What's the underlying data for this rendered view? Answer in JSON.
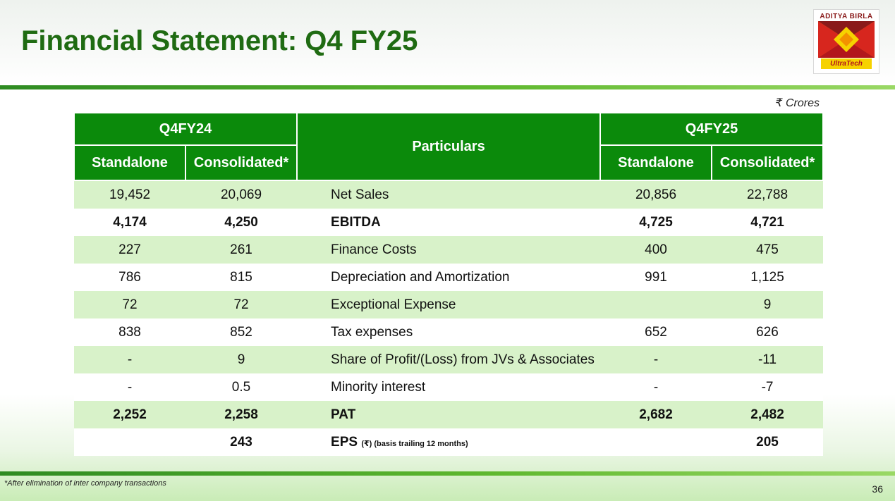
{
  "slide": {
    "title": "Financial Statement: Q4 FY25",
    "unit": "₹ Crores",
    "footnote": "*After elimination of inter company transactions",
    "page_number": "36"
  },
  "logo": {
    "top_text": "ADITYA BIRLA",
    "brand_text": "UltraTech",
    "colors": {
      "maroon": "#8a1a1a",
      "orange": "#f39200",
      "red": "#d7261e",
      "yellow": "#f6d200"
    }
  },
  "table": {
    "period_left": "Q4FY24",
    "period_right": "Q4FY25",
    "particulars_header": "Particulars",
    "sub_left_standalone": "Standalone",
    "sub_left_consolidated": "Consolidated*",
    "sub_right_standalone": "Standalone",
    "sub_right_consolidated": "Consolidated*",
    "rows": [
      {
        "particular": "Net Sales",
        "fy24_sa": "19,452",
        "fy24_con": "20,069",
        "fy25_sa": "20,856",
        "fy25_con": "22,788",
        "bold": false
      },
      {
        "particular": "EBITDA",
        "fy24_sa": "4,174",
        "fy24_con": "4,250",
        "fy25_sa": "4,725",
        "fy25_con": "4,721",
        "bold": true
      },
      {
        "particular": "Finance Costs",
        "fy24_sa": "227",
        "fy24_con": "261",
        "fy25_sa": "400",
        "fy25_con": "475",
        "bold": false
      },
      {
        "particular": "Depreciation and Amortization",
        "fy24_sa": "786",
        "fy24_con": "815",
        "fy25_sa": "991",
        "fy25_con": "1,125",
        "bold": false
      },
      {
        "particular": "Exceptional Expense",
        "fy24_sa": "72",
        "fy24_con": "72",
        "fy25_sa": "",
        "fy25_con": "9",
        "bold": false
      },
      {
        "particular": "Tax expenses",
        "fy24_sa": "838",
        "fy24_con": "852",
        "fy25_sa": "652",
        "fy25_con": "626",
        "bold": false
      },
      {
        "particular": "Share of Profit/(Loss) from JVs & Associates",
        "fy24_sa": "-",
        "fy24_con": "9",
        "fy25_sa": "-",
        "fy25_con": "-11",
        "bold": false
      },
      {
        "particular": "Minority interest",
        "fy24_sa": "-",
        "fy24_con": "0.5",
        "fy25_sa": "-",
        "fy25_con": "-7",
        "bold": false
      },
      {
        "particular": "PAT",
        "fy24_sa": "2,252",
        "fy24_con": "2,258",
        "fy25_sa": "2,682",
        "fy25_con": "2,482",
        "bold": true
      },
      {
        "particular": "EPS",
        "particular_note": "(₹) (basis trailing 12 months)",
        "fy24_sa": "",
        "fy24_con": "243",
        "fy25_sa": "",
        "fy25_con": "205",
        "bold": true
      }
    ]
  }
}
